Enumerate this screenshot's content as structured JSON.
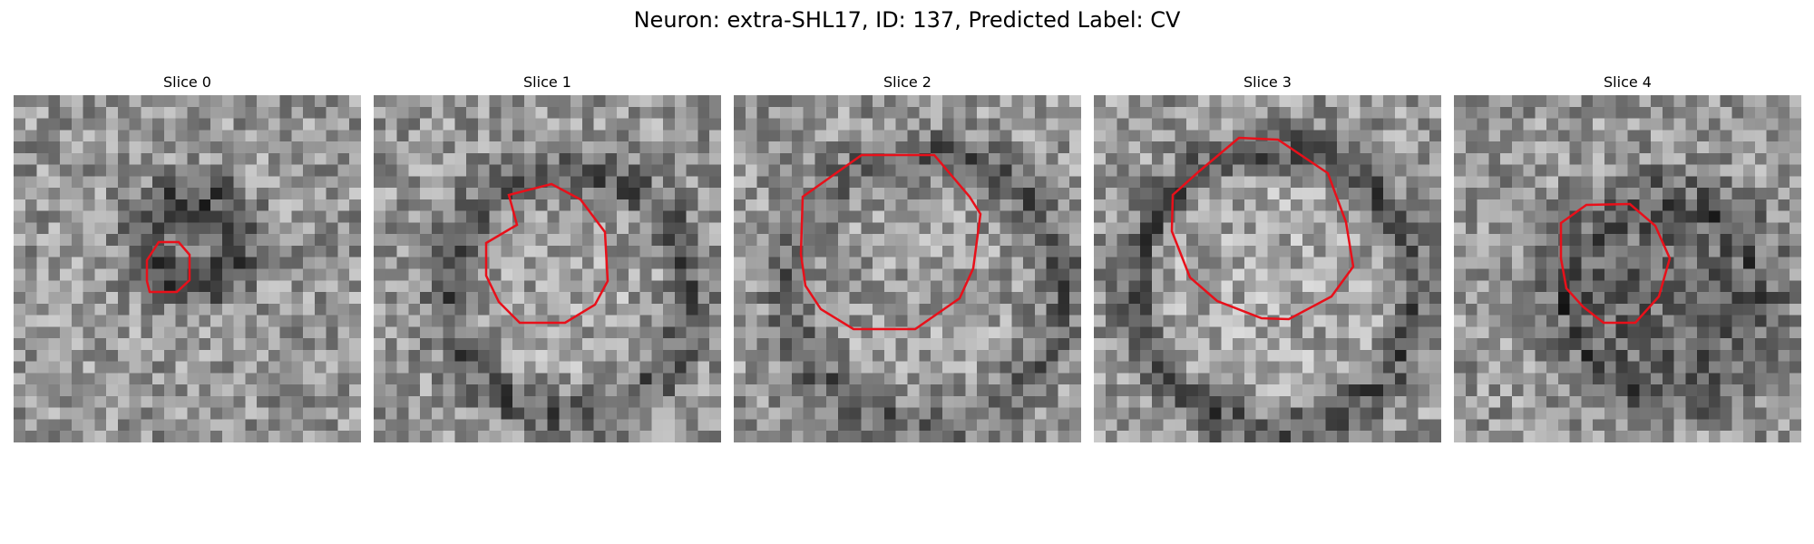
{
  "figure": {
    "title": "Neuron: extra-SHL17, ID: 137, Predicted Label: CV"
  },
  "contour_color": "#e8101a",
  "panels": [
    {
      "title": "Slice 0"
    },
    {
      "title": "Slice 1"
    },
    {
      "title": "Slice 2"
    },
    {
      "title": "Slice 3"
    },
    {
      "title": "Slice 4"
    }
  ]
}
